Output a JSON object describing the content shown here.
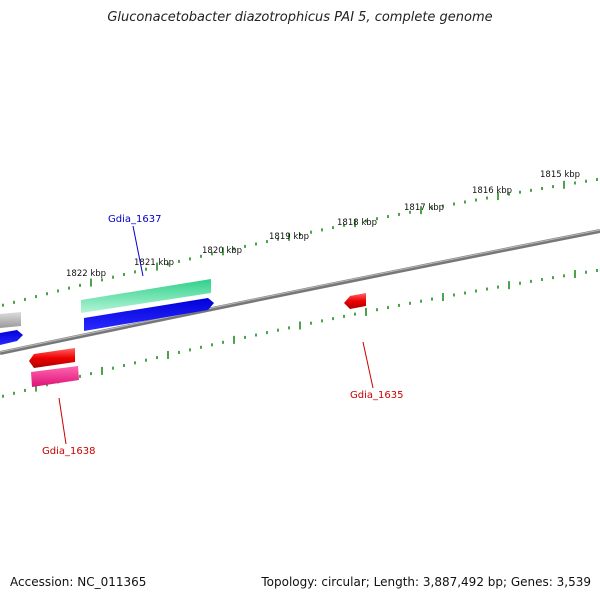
{
  "title": "Gluconacetobacter diazotrophicus PAI 5, complete genome",
  "footer": {
    "accession": "Accession: NC_011365",
    "summary": "Topology: circular; Length: 3,887,492 bp; Genes: 3,539"
  },
  "colors": {
    "backbone": "#888888",
    "tick": "#1e8c1e",
    "forward_label": "#0000cc",
    "reverse_label": "#cc0000"
  },
  "tick_labels": [
    "1815 kbp",
    "1816 kbp",
    "1817 kbp",
    "1818 kbp",
    "1819 kbp",
    "1820 kbp",
    "1821 kbp",
    "1822 kbp"
  ],
  "genes": [
    {
      "id": "gdia-1637",
      "label": "Gdia_1637",
      "color": "#0000cc"
    },
    {
      "id": "gdia-1635",
      "label": "Gdia_1635",
      "color": "#cc0000"
    },
    {
      "id": "gdia-1638",
      "label": "Gdia_1638",
      "color": "#cc0000"
    }
  ]
}
